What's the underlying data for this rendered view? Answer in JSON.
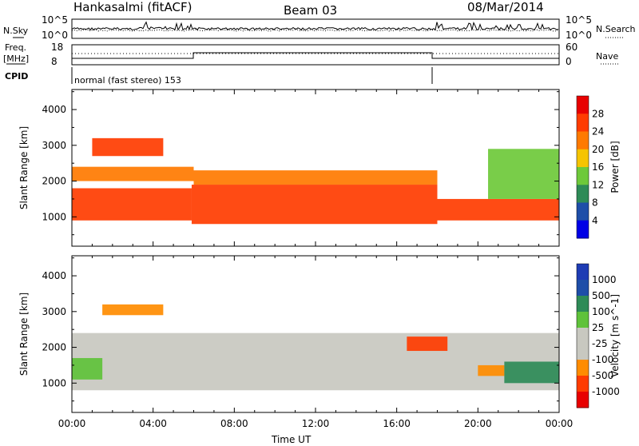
{
  "header": {
    "station": "Hankasalmi (fitACF)",
    "beam": "Beam 03",
    "date": "08/Mar/2014"
  },
  "noise_panel": {
    "left_label": "N.Sky",
    "left_ticks": [
      "10^5",
      "10^0"
    ],
    "right_ticks": [
      "10^5",
      "10^0"
    ],
    "right_label": "N.Search"
  },
  "freq_panel": {
    "left_label_1": "Freq.",
    "left_label_2": "[MHz]",
    "left_ticks": [
      "18",
      "8"
    ],
    "right_ticks": [
      "60",
      "0"
    ],
    "right_label": "Nave"
  },
  "cpid": {
    "label": "CPID",
    "text": "normal (fast stereo) 153"
  },
  "x_axis": {
    "label": "Time UT",
    "ticks": [
      "00:00",
      "04:00",
      "08:00",
      "12:00",
      "16:00",
      "20:00",
      "00:00"
    ]
  },
  "colors": {
    "power": [
      "#0000e6",
      "#1e4ea8",
      "#2e8b57",
      "#6ec93a",
      "#f5c400",
      "#ff7a00",
      "#ff3c00",
      "#e80000"
    ],
    "velocity": [
      "#e80000",
      "#ff3c00",
      "#ff8c00",
      "#c8c8c0",
      "#c8c8c0",
      "#5fc23a",
      "#2e8b57",
      "#1e4ea8",
      "#1e3cb4"
    ]
  },
  "chart_data": [
    {
      "type": "heatmap",
      "title": "Power",
      "ylabel": "Slant Range [km]",
      "xlabel": "Time UT",
      "ylim": [
        180,
        4560
      ],
      "yticks": [
        "1000",
        "2000",
        "3000",
        "4000"
      ],
      "x_ticks": [
        "00:00",
        "04:00",
        "08:00",
        "12:00",
        "16:00",
        "20:00",
        "00:00"
      ],
      "colorbar": {
        "label": "Power [dB]",
        "ticks": [
          "4",
          "8",
          "12",
          "16",
          "20",
          "24",
          "28"
        ]
      },
      "bands": [
        {
          "t0": 0.0,
          "t1": 5.9,
          "r0": 900,
          "r1": 1800,
          "level": "high"
        },
        {
          "t0": 5.9,
          "t1": 18.0,
          "r0": 800,
          "r1": 1900,
          "level": "high"
        },
        {
          "t0": 18.0,
          "t1": 24.0,
          "r0": 900,
          "r1": 1500,
          "level": "high"
        },
        {
          "t0": 0.0,
          "t1": 6.0,
          "r0": 2000,
          "r1": 2400,
          "level": "mid"
        },
        {
          "t0": 1.0,
          "t1": 4.5,
          "r0": 2700,
          "r1": 3200,
          "level": "high"
        },
        {
          "t0": 6.0,
          "t1": 18.0,
          "r0": 1900,
          "r1": 2300,
          "level": "mid"
        },
        {
          "t0": 20.5,
          "t1": 24.0,
          "r0": 1500,
          "r1": 2900,
          "level": "low"
        }
      ]
    },
    {
      "type": "heatmap",
      "title": "Velocity",
      "ylabel": "Slant Range [km]",
      "xlabel": "Time UT",
      "ylim": [
        180,
        4560
      ],
      "yticks": [
        "1000",
        "2000",
        "3000",
        "4000"
      ],
      "x_ticks": [
        "00:00",
        "04:00",
        "08:00",
        "12:00",
        "16:00",
        "20:00",
        "00:00"
      ],
      "colorbar": {
        "label": "Velocity [m s^-1]",
        "ticks": [
          "1000",
          "500",
          "100",
          "25",
          "-25",
          "-100",
          "-500",
          "-1000"
        ]
      },
      "bands": [
        {
          "t0": 0.0,
          "t1": 24.0,
          "r0": 800,
          "r1": 2400,
          "level": "ground"
        },
        {
          "t0": 0.0,
          "t1": 1.5,
          "r0": 1100,
          "r1": 1700,
          "level": "positive"
        },
        {
          "t0": 1.5,
          "t1": 4.5,
          "r0": 2900,
          "r1": 3200,
          "level": "negative"
        },
        {
          "t0": 16.5,
          "t1": 18.5,
          "r0": 1900,
          "r1": 2300,
          "level": "strong-negative"
        },
        {
          "t0": 20.0,
          "t1": 21.3,
          "r0": 1200,
          "r1": 1500,
          "level": "negative"
        },
        {
          "t0": 21.3,
          "t1": 24.0,
          "r0": 1000,
          "r1": 1600,
          "level": "strong-positive"
        }
      ]
    }
  ]
}
